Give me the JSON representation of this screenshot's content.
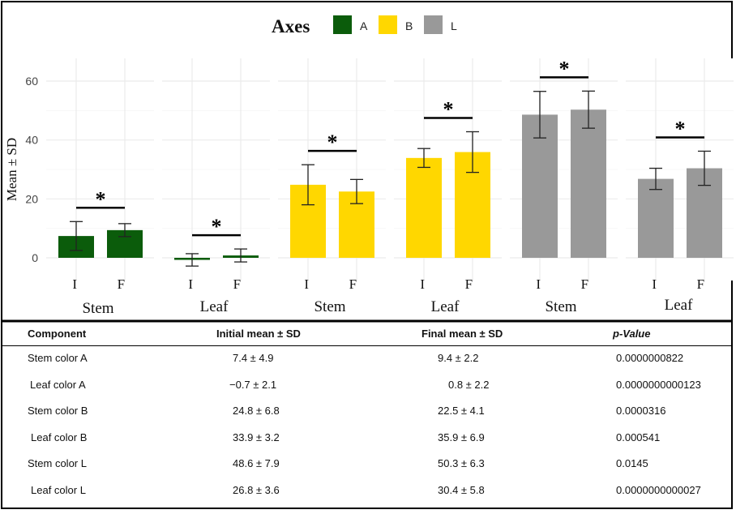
{
  "chart_data": {
    "type": "bar",
    "legend": {
      "title": "Axes",
      "entries": [
        {
          "label": "A",
          "color": "#0b5c0b"
        },
        {
          "label": "B",
          "color": "#ffd700"
        },
        {
          "label": "L",
          "color": "#999999"
        }
      ],
      "placement": "top"
    },
    "ylabel": "Mean ± SD",
    "ylim": [
      -8,
      68
    ],
    "yticks": [
      "0",
      "20",
      "40",
      "60"
    ],
    "ytick_values": [
      0,
      20,
      40,
      60
    ],
    "grid": true,
    "panels": [
      {
        "label": "Stem",
        "axis": "A",
        "color": "#0b5c0b",
        "categories": [
          "I",
          "F"
        ],
        "values": [
          7.4,
          9.4
        ],
        "sd": [
          4.9,
          2.2
        ],
        "significance": "*"
      },
      {
        "label": "Leaf",
        "axis": "A",
        "color": "#0b5c0b",
        "categories": [
          "I",
          "F"
        ],
        "values": [
          -0.7,
          0.8
        ],
        "sd": [
          2.1,
          2.2
        ],
        "significance": "*"
      },
      {
        "label": "Stem",
        "axis": "B",
        "color": "#ffd700",
        "categories": [
          "I",
          "F"
        ],
        "values": [
          24.8,
          22.5
        ],
        "sd": [
          6.8,
          4.1
        ],
        "significance": "*"
      },
      {
        "label": "Leaf",
        "axis": "B",
        "color": "#ffd700",
        "categories": [
          "I",
          "F"
        ],
        "values": [
          33.9,
          35.9
        ],
        "sd": [
          3.2,
          6.9
        ],
        "significance": "*"
      },
      {
        "label": "Stem",
        "axis": "L",
        "color": "#999999",
        "categories": [
          "I",
          "F"
        ],
        "values": [
          48.6,
          50.3
        ],
        "sd": [
          7.9,
          6.3
        ],
        "significance": "*"
      },
      {
        "label": "Leaf",
        "axis": "L",
        "color": "#999999",
        "categories": [
          "I",
          "F"
        ],
        "values": [
          26.8,
          30.4
        ],
        "sd": [
          3.6,
          5.8
        ],
        "significance": "*"
      }
    ]
  },
  "table": {
    "headers": [
      "Component",
      "Initial mean ± SD",
      "Final mean ± SD",
      "p-Value"
    ],
    "rows": [
      [
        "Stem color A",
        "7.4 ± 4.9",
        "9.4 ± 2.2",
        "0.0000000822"
      ],
      [
        "Leaf color A",
        "−0.7 ± 2.1",
        "0.8 ± 2.2",
        "0.0000000000123"
      ],
      [
        "Stem color B",
        "24.8 ± 6.8",
        "22.5 ± 4.1",
        "0.0000316"
      ],
      [
        "Leaf color B",
        "33.9 ± 3.2",
        "35.9 ± 6.9",
        "0.000541"
      ],
      [
        "Stem color L",
        "48.6 ± 7.9",
        "50.3 ± 6.3",
        "0.0145"
      ],
      [
        "Leaf color L",
        "26.8 ± 3.6",
        "30.4 ± 5.8",
        "0.0000000000027"
      ]
    ]
  }
}
